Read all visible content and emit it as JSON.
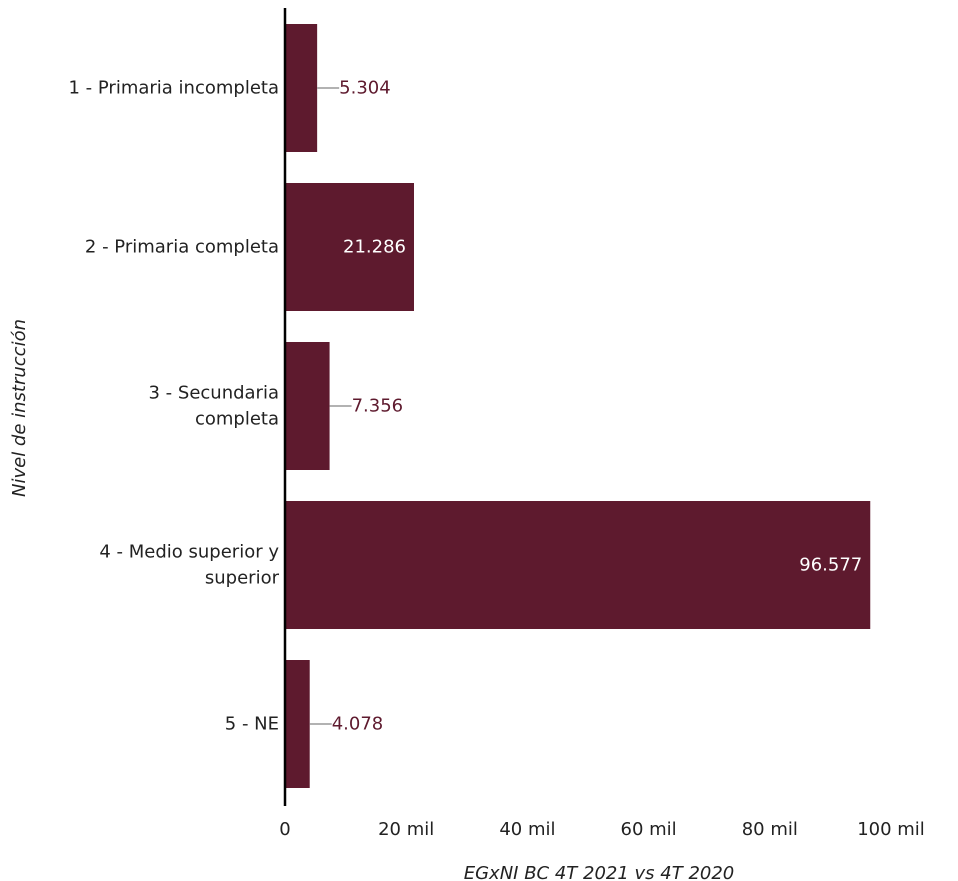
{
  "chart_data": {
    "type": "bar",
    "orientation": "horizontal",
    "categories": [
      [
        "1 - Primaria incompleta"
      ],
      [
        "2 - Primaria completa"
      ],
      [
        "3 - Secundaria",
        "completa"
      ],
      [
        "4 - Medio superior y",
        "superior"
      ],
      [
        "5 - NE"
      ]
    ],
    "values": [
      5304,
      21286,
      7356,
      96577,
      4078
    ],
    "value_labels": [
      "5.304",
      "21.286",
      "7.356",
      "96.577",
      "4.078"
    ],
    "xlabel": "EGxNI BC 4T 2021 vs 4T 2020",
    "ylabel": "Nivel de instrucción",
    "xlim": [
      0,
      100000
    ],
    "xticks": [
      0,
      20000,
      40000,
      60000,
      80000,
      100000
    ],
    "xtick_labels": [
      "0",
      "20 mil",
      "40 mil",
      "60 mil",
      "80 mil",
      "100 mil"
    ],
    "grid": false,
    "legend": "none",
    "colors": {
      "bar": "#5e1a2e",
      "label_inside": "#ffffff",
      "label_outside": "#5e1a2e",
      "leader_line": "#999999",
      "axis": "#000000"
    }
  }
}
